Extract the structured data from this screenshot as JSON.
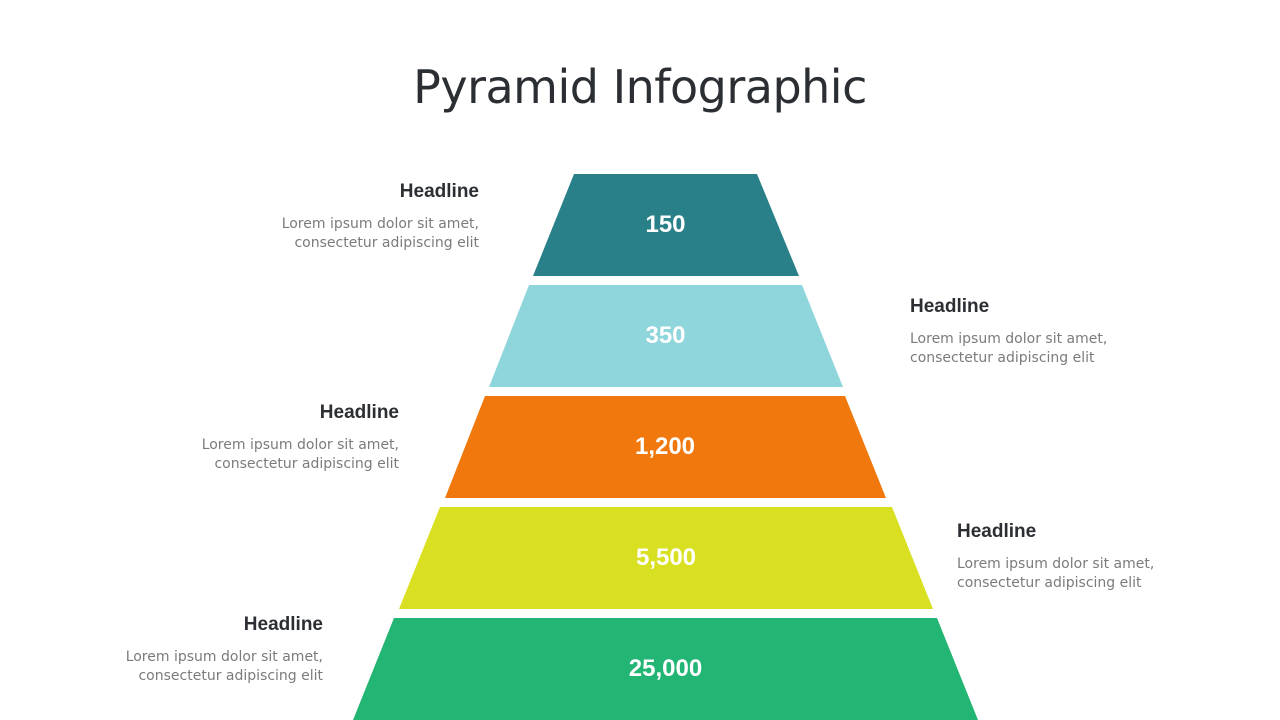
{
  "title": "Pyramid Infographic",
  "tiers": [
    {
      "value": "150",
      "color": "#2a8089",
      "headline": "Headline",
      "desc1": "Lorem ipsum dolor sit amet,",
      "desc2": "consectetur adipiscing elit",
      "side": "left"
    },
    {
      "value": "350",
      "color": "#8fd5dc",
      "headline": "Headline",
      "desc1": "Lorem ipsum dolor sit amet,",
      "desc2": "consectetur adipiscing elit",
      "side": "right"
    },
    {
      "value": "1,200",
      "color": "#f0780c",
      "headline": "Headline",
      "desc1": "Lorem ipsum dolor sit amet,",
      "desc2": "consectetur adipiscing elit",
      "side": "left"
    },
    {
      "value": "5,500",
      "color": "#d9e021",
      "headline": "Headline",
      "desc1": "Lorem ipsum dolor sit amet,",
      "desc2": "consectetur adipiscing elit",
      "side": "right"
    },
    {
      "value": "25,000",
      "color": "#23b573",
      "headline": "Headline",
      "desc1": "Lorem ipsum dolor sit amet,",
      "desc2": "consectetur adipiscing elit",
      "side": "left"
    }
  ]
}
